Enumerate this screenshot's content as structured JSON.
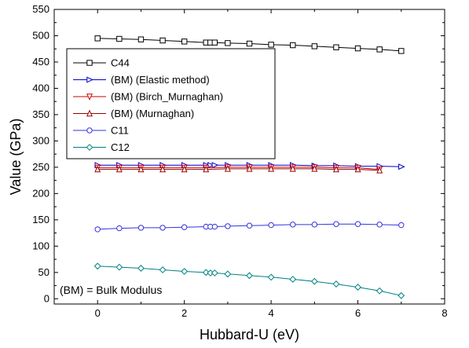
{
  "chart_data": {
    "type": "line",
    "xlabel": "Hubbard-U (eV)",
    "ylabel": "Value (GPa)",
    "xlim": [
      -1,
      8
    ],
    "ylim": [
      -10,
      550
    ],
    "xticks": [
      0,
      2,
      4,
      6,
      8
    ],
    "yticks": [
      0,
      50,
      100,
      150,
      200,
      250,
      300,
      350,
      400,
      450,
      500,
      550
    ],
    "grid": false,
    "legend_position": "upper-left",
    "annotation": "(BM) = Bulk Modulus",
    "series": [
      {
        "name": "C44",
        "color": "#000000",
        "marker": "square",
        "x": [
          0,
          0.5,
          1,
          1.5,
          2,
          2.5,
          2.6,
          2.7,
          3,
          3.5,
          4,
          4.5,
          5,
          5.5,
          6,
          6.5,
          7
        ],
        "y": [
          495,
          494,
          493,
          491,
          489,
          487,
          487,
          487,
          486,
          485,
          483,
          482,
          480,
          478,
          476,
          474,
          471
        ]
      },
      {
        "name": "(BM) (Elastic method)",
        "color": "#0000cc",
        "marker": "triangle-right",
        "x": [
          0,
          0.5,
          1,
          1.5,
          2,
          2.5,
          2.6,
          2.7,
          3,
          3.5,
          4,
          4.5,
          5,
          5.5,
          6,
          6.5,
          7
        ],
        "y": [
          254,
          254,
          254,
          254,
          254,
          254,
          254,
          254,
          254,
          254,
          254,
          254,
          253,
          253,
          252,
          252,
          251
        ]
      },
      {
        "name": "(BM) (Birch_Murnaghan)",
        "color": "#cc0000",
        "marker": "triangle-down",
        "x": [
          0,
          0.5,
          1,
          1.5,
          2,
          2.5,
          3,
          3.5,
          4,
          4.5,
          5,
          5.5,
          6,
          6.5
        ],
        "y": [
          249,
          249,
          249,
          249,
          249,
          249,
          250,
          250,
          250,
          250,
          250,
          249,
          249,
          246
        ]
      },
      {
        "name": "(BM) (Murnaghan)",
        "color": "#990000",
        "marker": "triangle-up",
        "x": [
          0,
          0.5,
          1,
          1.5,
          2,
          2.5,
          3,
          3.5,
          4,
          4.5,
          5,
          5.5,
          6,
          6.5
        ],
        "y": [
          246,
          246,
          246,
          246,
          246,
          246,
          247,
          247,
          247,
          247,
          247,
          246,
          246,
          244
        ]
      },
      {
        "name": "C11",
        "color": "#3333dd",
        "marker": "circle",
        "x": [
          0,
          0.5,
          1,
          1.5,
          2,
          2.5,
          2.6,
          2.7,
          3,
          3.5,
          4,
          4.5,
          5,
          5.5,
          6,
          6.5,
          7
        ],
        "y": [
          132,
          134,
          135,
          135,
          136,
          137,
          137,
          137,
          138,
          139,
          140,
          141,
          141,
          142,
          142,
          141,
          140
        ]
      },
      {
        "name": "C12",
        "color": "#008080",
        "marker": "diamond",
        "x": [
          0,
          0.5,
          1,
          1.5,
          2,
          2.5,
          2.6,
          2.7,
          3,
          3.5,
          4,
          4.5,
          5,
          5.5,
          6,
          6.5,
          7
        ],
        "y": [
          62,
          60,
          58,
          55,
          52,
          50,
          49,
          49,
          47,
          44,
          41,
          37,
          33,
          28,
          22,
          15,
          6
        ]
      }
    ]
  }
}
